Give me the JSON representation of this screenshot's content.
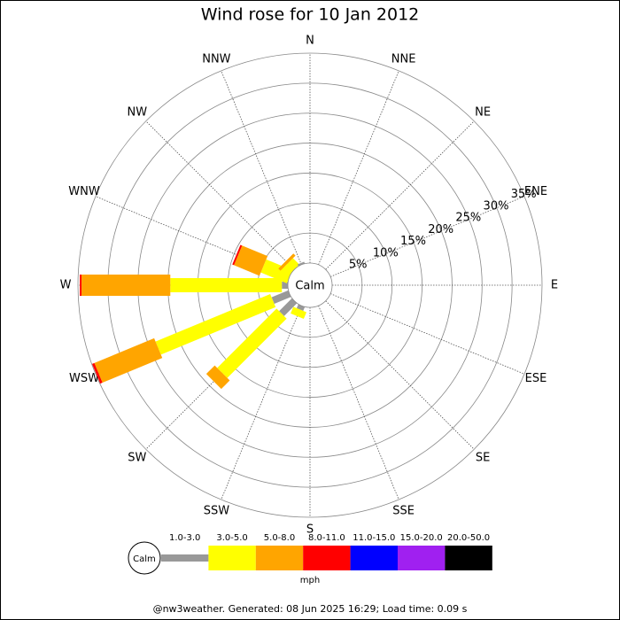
{
  "chart_data": {
    "type": "windrose",
    "title": "Wind rose for 10 Jan 2012",
    "directions": [
      "N",
      "NNE",
      "NE",
      "ENE",
      "E",
      "ESE",
      "SE",
      "SSE",
      "S",
      "SSW",
      "SW",
      "WSW",
      "W",
      "WNW",
      "NW",
      "NNW"
    ],
    "center_label": "Calm",
    "series": [
      {
        "name": "1.0-3.0",
        "color": "#999999",
        "values": [
          0,
          0,
          0,
          0,
          0,
          0,
          0,
          0,
          0,
          0.7,
          3,
          3,
          1,
          0,
          0,
          0.3
        ]
      },
      {
        "name": "3.0-5.0",
        "color": "#ffff00",
        "values": [
          0,
          0,
          0,
          0,
          0,
          0,
          0,
          0,
          0,
          1.2,
          14,
          20.7,
          18.6,
          4.7,
          1.5,
          0
        ]
      },
      {
        "name": "5.0-8.0",
        "color": "#ffa500",
        "values": [
          0,
          0,
          0,
          0,
          0,
          0,
          0,
          0,
          0,
          0,
          2,
          10.8,
          14.8,
          4.6,
          0.5,
          0
        ]
      },
      {
        "name": "8.0-11.0",
        "color": "#ff0000",
        "values": [
          0,
          0,
          0,
          0,
          0,
          0,
          0,
          0,
          0,
          0,
          0,
          0.4,
          0.3,
          0.3,
          0,
          0
        ]
      },
      {
        "name": "11.0-15.0",
        "color": "#0000ff",
        "values": [
          0,
          0,
          0,
          0,
          0,
          0,
          0,
          0,
          0,
          0,
          0,
          0,
          0,
          0,
          0,
          0
        ]
      },
      {
        "name": "15.0-20.0",
        "color": "#a020f0",
        "values": [
          0,
          0,
          0,
          0,
          0,
          0,
          0,
          0,
          0,
          0,
          0,
          0,
          0,
          0,
          0,
          0
        ]
      },
      {
        "name": "20.0-50.0",
        "color": "#000000",
        "values": [
          0,
          0,
          0,
          0,
          0,
          0,
          0,
          0,
          0,
          0,
          0,
          0,
          0,
          0,
          0,
          0
        ]
      }
    ],
    "rlim": [
      0,
      35
    ],
    "rticks": [
      {
        "value": 5,
        "label": "5%"
      },
      {
        "value": 10,
        "label": "10%"
      },
      {
        "value": 15,
        "label": "15%"
      },
      {
        "value": 20,
        "label": "20%"
      },
      {
        "value": 25,
        "label": "25%"
      },
      {
        "value": 30,
        "label": "30%"
      },
      {
        "value": 35,
        "label": "35%"
      }
    ],
    "unit": "mph"
  },
  "footer": "@nw3weather. Generated: 08 Jun 2025 16:29; Load time: 0.09 s"
}
